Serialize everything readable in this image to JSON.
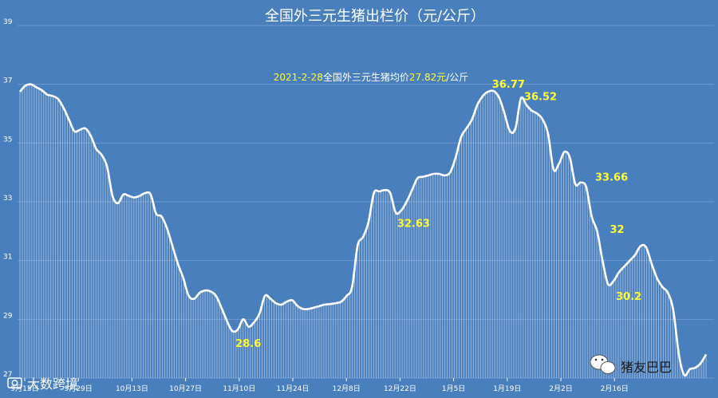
{
  "chart_data": {
    "type": "line",
    "title": "全国外三元生猪出栏价（元/公斤）",
    "subtitle": {
      "date": "2021-2-28",
      "text": "全国外三元生猪均价",
      "value": "27.82元",
      "unit": "/公斤"
    },
    "ylim": [
      27,
      39
    ],
    "yticks": [
      "27",
      "29",
      "31",
      "33",
      "35",
      "37",
      "39"
    ],
    "xticks": [
      "9月15日",
      "9月29日",
      "10月13日",
      "10月27日",
      "11月10日",
      "11月24日",
      "12月8日",
      "12月22日",
      "1月5日",
      "1月19日",
      "2月2日",
      "2月16日"
    ],
    "grid": true,
    "legend": "none",
    "series": [
      {
        "values": [
          36.75,
          36.95,
          37.0,
          36.9,
          36.8,
          36.65,
          36.6,
          36.5,
          36.2,
          35.8,
          35.4,
          35.45,
          35.5,
          35.25,
          34.8,
          34.6,
          34.2,
          33.2,
          32.95,
          33.25,
          33.2,
          33.15,
          33.2,
          33.3,
          33.25,
          32.6,
          32.5,
          32.1,
          31.5,
          30.9,
          30.4,
          29.8,
          29.7,
          29.9,
          29.98,
          29.95,
          29.8,
          29.4,
          28.95,
          28.6,
          28.65,
          29.0,
          28.75,
          28.9,
          29.2,
          29.8,
          29.7,
          29.55,
          29.5,
          29.6,
          29.65,
          29.45,
          29.35,
          29.35,
          29.4,
          29.45,
          29.5,
          29.52,
          29.55,
          29.6,
          29.8,
          30.1,
          31.5,
          31.8,
          32.3,
          33.3,
          33.35,
          33.4,
          33.3,
          32.63,
          32.7,
          33.0,
          33.4,
          33.8,
          33.85,
          33.9,
          33.95,
          33.95,
          33.9,
          34.0,
          34.5,
          35.2,
          35.5,
          35.8,
          36.3,
          36.6,
          36.75,
          36.77,
          36.55,
          36.0,
          35.4,
          35.5,
          36.52,
          36.3,
          36.1,
          36.0,
          35.8,
          35.3,
          34.1,
          34.3,
          34.7,
          34.5,
          33.6,
          33.66,
          33.5,
          32.5,
          32.0,
          31.0,
          30.2,
          30.3,
          30.6,
          30.8,
          31.0,
          31.2,
          31.5,
          31.45,
          30.9,
          30.4,
          30.1,
          29.9,
          29.3,
          27.82,
          27.1,
          27.3,
          27.35,
          27.5,
          27.8
        ]
      }
    ],
    "annotations": [
      {
        "text": "28.6",
        "index": 39
      },
      {
        "text": "32.63",
        "index": 69
      },
      {
        "text": "36.77",
        "index": 87
      },
      {
        "text": "36.52",
        "index": 92
      },
      {
        "text": "33.66",
        "index": 103
      },
      {
        "text": "32",
        "index": 106
      },
      {
        "text": "30.2",
        "index": 108
      }
    ],
    "colors": {
      "background": "#4a7fbd",
      "line": "#ffffff",
      "annotation": "#ffff33",
      "grid": "#6f9ad0"
    }
  },
  "watermarks": {
    "left": "大数跨境",
    "right": "猪友巴巴",
    "left_icon": "camera-icon",
    "right_icon": "wechat-icon"
  }
}
